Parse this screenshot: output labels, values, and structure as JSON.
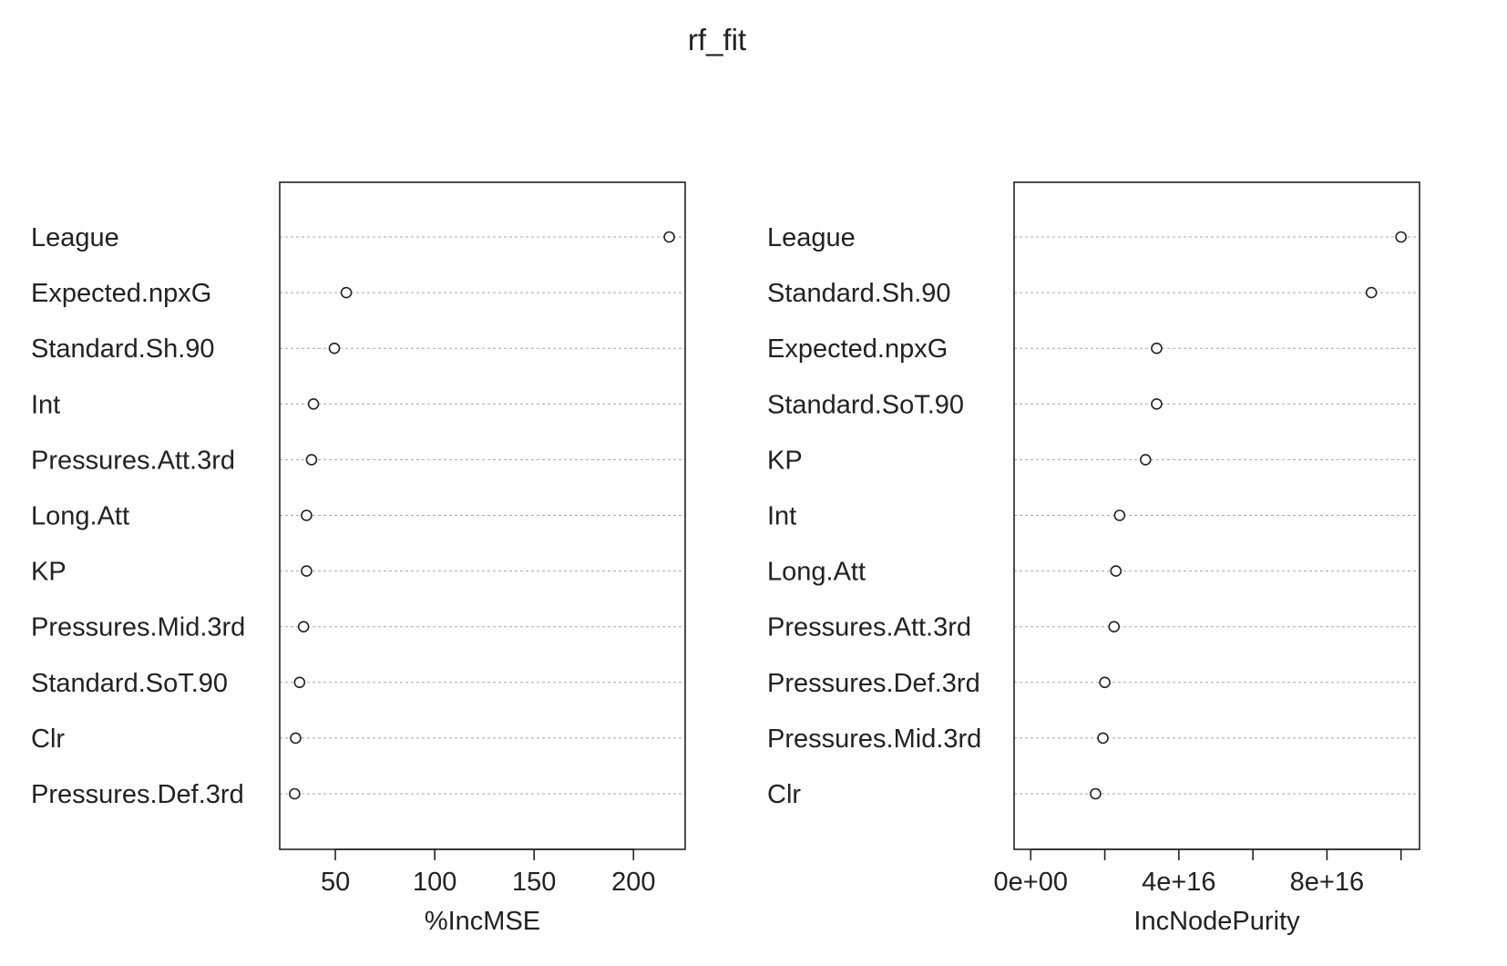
{
  "chart_data": {
    "type": "scatter",
    "title": "rf_fit",
    "panels": [
      {
        "xlabel": "%IncMSE",
        "xlim": [
          22,
          226
        ],
        "ticks": [
          50,
          100,
          150,
          200
        ],
        "tick_labels": [
          "50",
          "100",
          "150",
          "200"
        ],
        "grid": "horizontal-dotted",
        "points": [
          {
            "label": "League",
            "value": 218
          },
          {
            "label": "Expected.npxG",
            "value": 55.5
          },
          {
            "label": "Standard.Sh.90",
            "value": 49.5
          },
          {
            "label": "Int",
            "value": 39
          },
          {
            "label": "Pressures.Att.3rd",
            "value": 38
          },
          {
            "label": "Long.Att",
            "value": 35.5
          },
          {
            "label": "KP",
            "value": 35.5
          },
          {
            "label": "Pressures.Mid.3rd",
            "value": 34
          },
          {
            "label": "Standard.SoT.90",
            "value": 32
          },
          {
            "label": "Clr",
            "value": 30
          },
          {
            "label": "Pressures.Def.3rd",
            "value": 29.5
          }
        ]
      },
      {
        "xlabel": "IncNodePurity",
        "xlim": [
          -4500000000000000.0,
          1.05e+17
        ],
        "ticks": [
          0,
          2e+16,
          4e+16,
          6e+16,
          8e+16,
          1e+17
        ],
        "tick_labels": [
          "0e+00",
          "",
          "4e+16",
          "",
          "8e+16",
          ""
        ],
        "grid": "horizontal-dotted",
        "points": [
          {
            "label": "League",
            "value": 1e+17
          },
          {
            "label": "Standard.Sh.90",
            "value": 9.2e+16
          },
          {
            "label": "Expected.npxG",
            "value": 3.4e+16
          },
          {
            "label": "Standard.SoT.90",
            "value": 3.4e+16
          },
          {
            "label": "KP",
            "value": 3.1e+16
          },
          {
            "label": "Int",
            "value": 2.4e+16
          },
          {
            "label": "Long.Att",
            "value": 2.3e+16
          },
          {
            "label": "Pressures.Att.3rd",
            "value": 2.25e+16
          },
          {
            "label": "Pressures.Def.3rd",
            "value": 2e+16
          },
          {
            "label": "Pressures.Mid.3rd",
            "value": 1.95e+16
          },
          {
            "label": "Clr",
            "value": 1.75e+16
          }
        ]
      }
    ]
  }
}
